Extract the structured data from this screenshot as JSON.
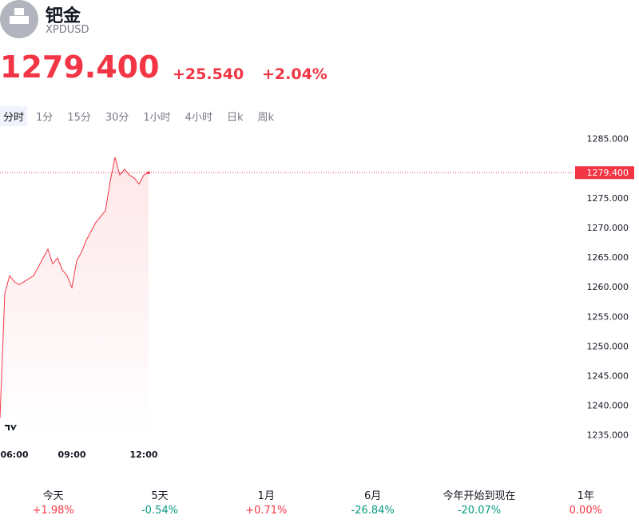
{
  "header": {
    "name": "钯金",
    "symbol": "XPDUSD",
    "price": "1279.400",
    "change": "+25.540",
    "change_pct": "+2.04%"
  },
  "tabs": [
    "分时",
    "1分",
    "15分",
    "30分",
    "1小时",
    "4小时",
    "日k",
    "周k"
  ],
  "chart_data": {
    "type": "line",
    "categories": [
      null,
      null,
      null,
      "06:00",
      null,
      null,
      null,
      null,
      null,
      null,
      null,
      null,
      null,
      null,
      null,
      "09:00",
      null,
      null,
      null,
      null,
      null,
      null,
      null,
      null,
      null,
      null,
      null,
      null,
      null,
      null,
      "12:00",
      null
    ],
    "series": [
      {
        "color": "#f23645",
        "values": [
          1238,
          1259,
          1262,
          1261,
          1260.5,
          1261,
          1261.5,
          1262,
          1263.5,
          1265,
          1266.5,
          1264,
          1265,
          1263,
          1262,
          1260,
          1264.5,
          1266,
          1268,
          1269.5,
          1271,
          1272,
          1273,
          1278,
          1282,
          1279,
          1280,
          1279,
          1278.5,
          1277.5,
          1279,
          1279.4
        ]
      }
    ],
    "ylim": [
      1232,
      1289
    ],
    "yticks": [
      {
        "value": 1285,
        "label": "1285.000"
      },
      {
        "value": 1275,
        "label": "1275.000"
      },
      {
        "value": 1270,
        "label": "1270.000"
      },
      {
        "value": 1265,
        "label": "1265.000"
      },
      {
        "value": 1260,
        "label": "1260.000"
      },
      {
        "value": 1255,
        "label": "1255.000"
      },
      {
        "value": 1250,
        "label": "1250.000"
      },
      {
        "value": 1245,
        "label": "1245.000"
      },
      {
        "value": 1240,
        "label": "1240.000"
      },
      {
        "value": 1235,
        "label": "1235.000"
      }
    ],
    "last_price": {
      "value": 1279.4,
      "label": "1279.400"
    }
  },
  "periods": [
    {
      "label": "今天",
      "change": "+1.98%",
      "color": "#f23645"
    },
    {
      "label": "5天",
      "change": "-0.54%",
      "color": "#089981"
    },
    {
      "label": "1月",
      "change": "+0.71%",
      "color": "#f23645"
    },
    {
      "label": "6月",
      "change": "-26.84%",
      "color": "#089981"
    },
    {
      "label": "今年开始到现在",
      "change": "-20.07%",
      "color": "#089981"
    },
    {
      "label": "1年",
      "change": "0.00%",
      "color": "#f23645"
    }
  ]
}
